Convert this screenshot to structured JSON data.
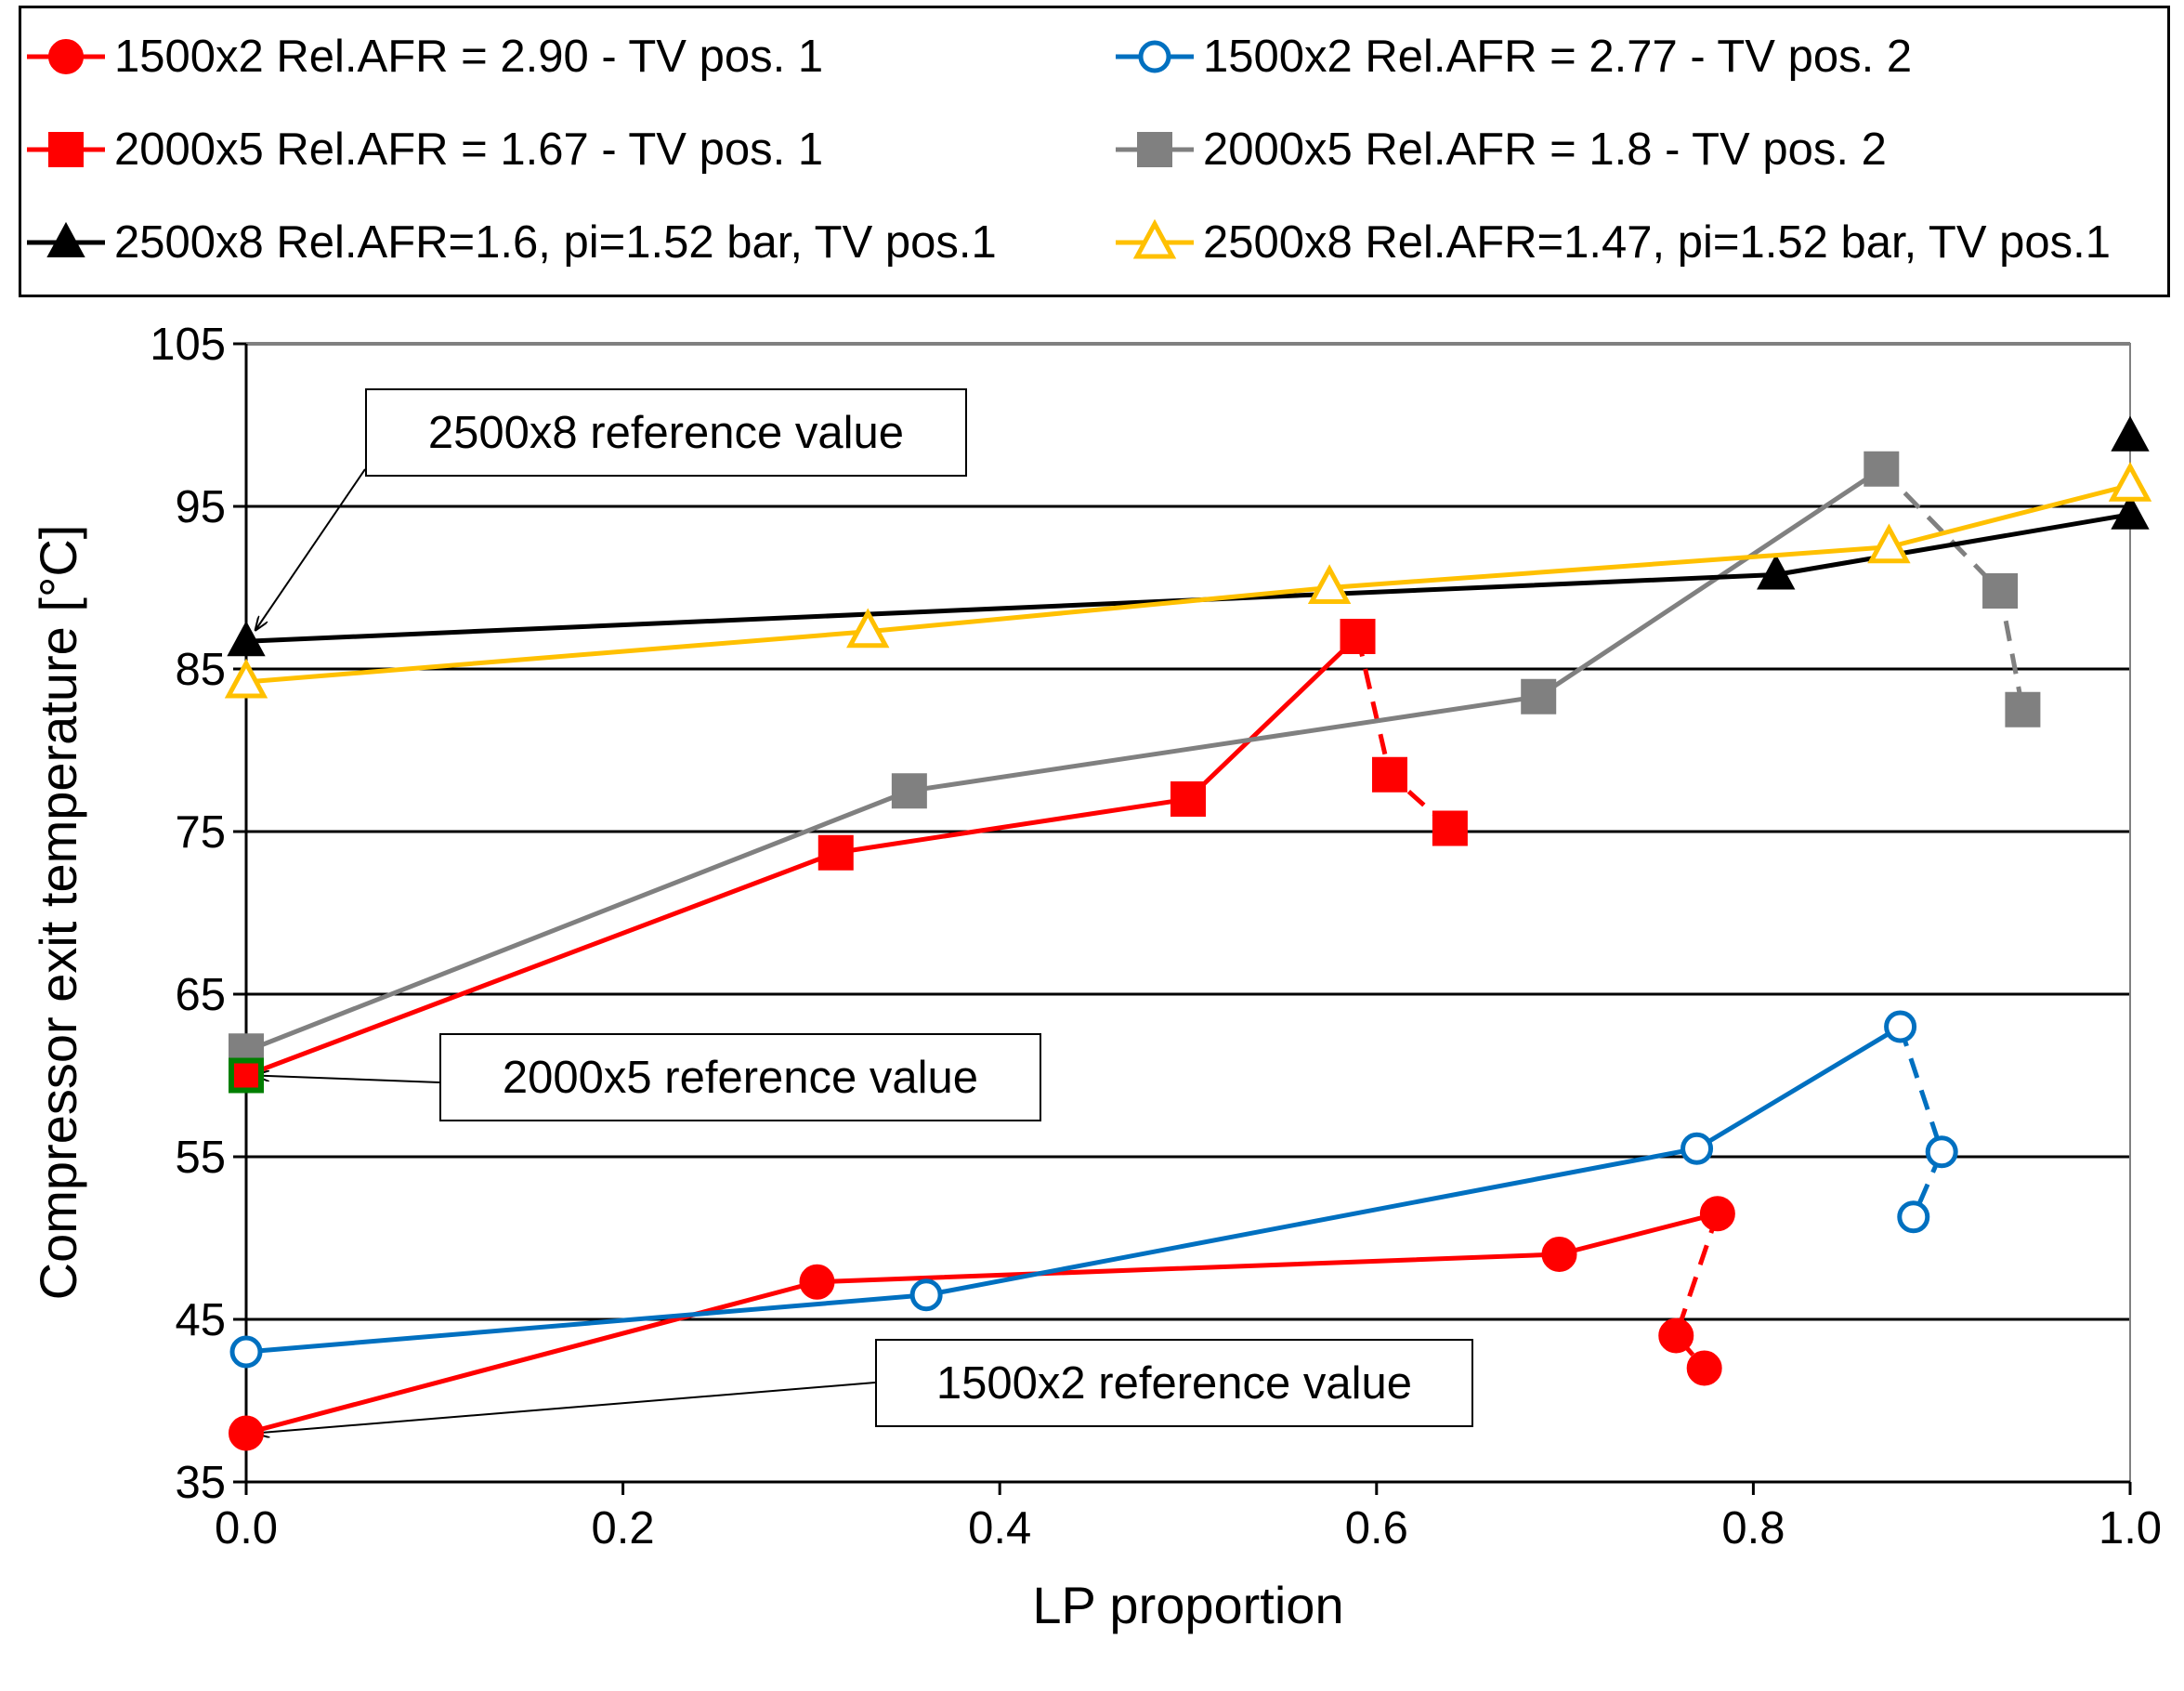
{
  "chart_data": {
    "type": "line",
    "xlabel": "LP proportion",
    "ylabel": "Compressor exit temperature [°C]",
    "xlim": [
      0.0,
      1.0
    ],
    "ylim": [
      35,
      105
    ],
    "x_ticks": [
      0.0,
      0.2,
      0.4,
      0.6,
      0.8,
      1.0
    ],
    "x_tick_labels": [
      "0.0",
      "0.2",
      "0.4",
      "0.6",
      "0.8",
      "1.0"
    ],
    "y_ticks": [
      35,
      45,
      55,
      65,
      75,
      85,
      95,
      105
    ],
    "y_tick_labels": [
      "35",
      "45",
      "55",
      "65",
      "75",
      "85",
      "95",
      "105"
    ],
    "grid": "horizontal",
    "legend_position": "top",
    "series": [
      {
        "name": "1500x2 Rel.AFR = 2.90 - TV pos. 1",
        "color": "#ff0000",
        "marker": "circle",
        "filled": true,
        "x": [
          0.0,
          0.303,
          0.697,
          0.781
        ],
        "y": [
          38.0,
          47.3,
          49.0,
          51.5
        ],
        "dashed_x": [
          0.781,
          0.759,
          0.774
        ],
        "dashed_y": [
          51.5,
          44.0,
          42.0
        ]
      },
      {
        "name": "1500x2 Rel.AFR = 2.77 - TV pos. 2",
        "color": "#0070c0",
        "marker": "circle",
        "filled": false,
        "x": [
          0.0,
          0.361,
          0.77,
          0.878
        ],
        "y": [
          43.0,
          46.5,
          55.5,
          63.0
        ],
        "dashed_x": [
          0.878,
          0.9,
          0.885
        ],
        "dashed_y": [
          63.0,
          55.3,
          51.3
        ]
      },
      {
        "name": "2000x5 Rel.AFR = 1.67 - TV pos. 1",
        "color": "#ff0000",
        "marker": "square",
        "filled": true,
        "x": [
          0.0,
          0.313,
          0.5,
          0.59
        ],
        "y": [
          60.0,
          73.7,
          77.0,
          87.0
        ],
        "dashed_x": [
          0.59,
          0.607,
          0.639
        ],
        "dashed_y": [
          87.0,
          78.5,
          75.2
        ]
      },
      {
        "name": "2000x5 Rel.AFR = 1.8 - TV pos. 2",
        "color": "#808080",
        "marker": "square",
        "filled": true,
        "x": [
          0.0,
          0.352,
          0.686,
          0.868
        ],
        "y": [
          61.5,
          77.5,
          83.3,
          97.3
        ],
        "dashed_x": [
          0.868,
          0.931,
          0.943
        ],
        "dashed_y": [
          97.3,
          89.8,
          82.5
        ]
      },
      {
        "name": "2500x8 Rel.AFR=1.6, pi=1.52 bar, TV pos.1",
        "color": "#000000",
        "marker": "triangle",
        "filled": true,
        "x": [
          0.0,
          0.812,
          1.0
        ],
        "y": [
          86.7,
          90.8,
          94.5
        ],
        "extra_x": [
          1.0
        ],
        "extra_y": [
          99.3
        ]
      },
      {
        "name": "2500x8 Rel.AFR=1.47, pi=1.52 bar, TV pos.1",
        "color": "#ffc000",
        "marker": "triangle",
        "filled": false,
        "x": [
          0.0,
          0.33,
          0.575,
          0.872,
          1.0
        ],
        "y": [
          84.2,
          87.3,
          90.0,
          92.5,
          96.3
        ]
      }
    ],
    "reference_marker": {
      "x": 0.0,
      "y": 60.0,
      "color": "#007f00"
    },
    "annotations": [
      {
        "text": "2500x8 reference value",
        "target_x": 0.0,
        "target_y": 86.7
      },
      {
        "text": "2000x5 reference value",
        "target_x": 0.0,
        "target_y": 60.0
      },
      {
        "text": "1500x2 reference value",
        "target_x": 0.0,
        "target_y": 38.0
      }
    ]
  }
}
